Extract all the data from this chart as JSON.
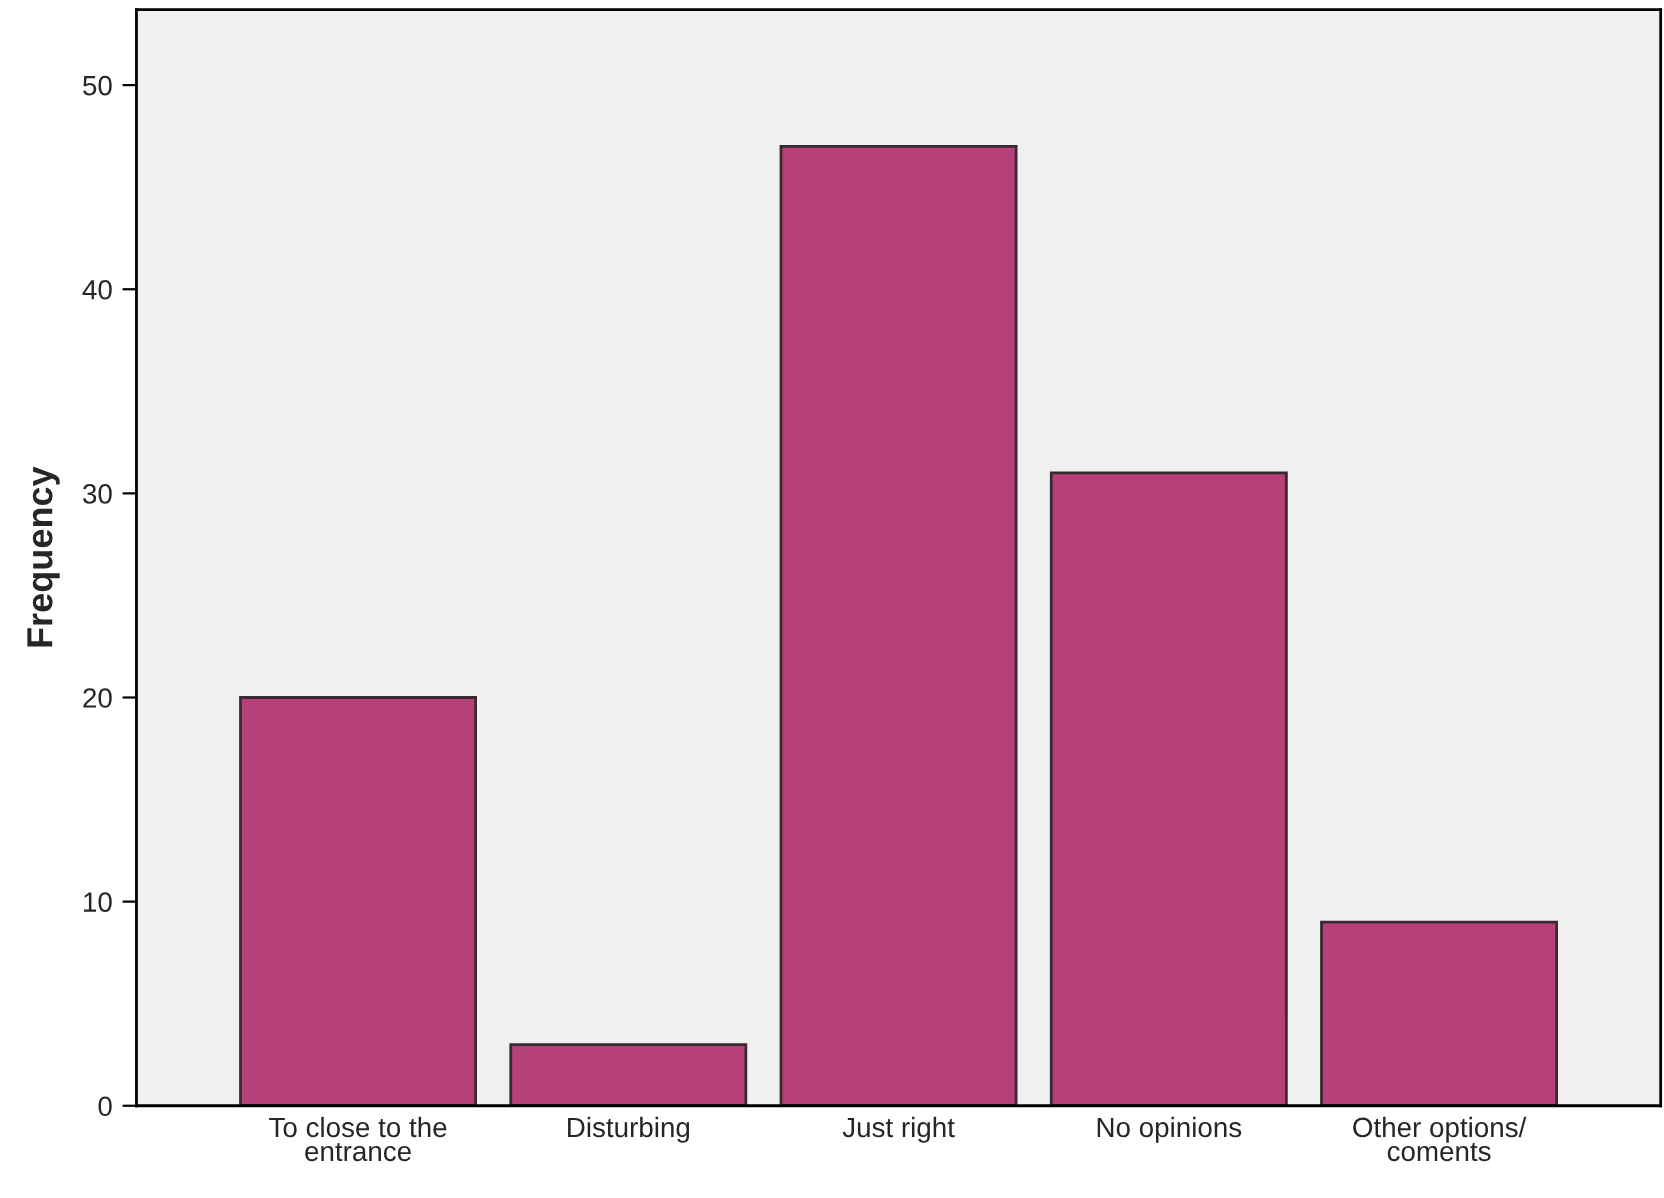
{
  "chart_data": {
    "type": "bar",
    "ylabel": "Frequency",
    "categories": [
      "To close to the\nentrance",
      "Disturbing",
      "Just right",
      "No opinions",
      "Other options/\ncoments"
    ],
    "values": [
      20,
      3,
      47,
      31,
      9
    ],
    "color": "#b5407a",
    "ylim": [
      0,
      53.7
    ],
    "yticks": [
      0,
      10,
      20,
      30,
      40,
      50
    ],
    "grid": false,
    "legend": false
  }
}
